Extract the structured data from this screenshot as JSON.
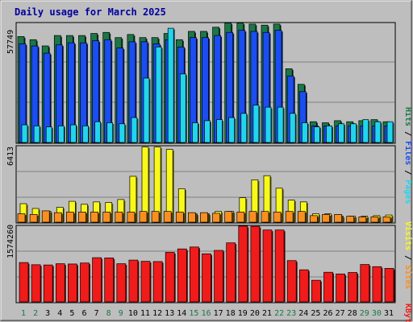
{
  "chart_data": [
    {
      "type": "bar",
      "title": "Daily usage for March 2025",
      "categories": [
        "1",
        "2",
        "3",
        "4",
        "5",
        "6",
        "7",
        "8",
        "9",
        "10",
        "11",
        "12",
        "13",
        "14",
        "15",
        "16",
        "17",
        "18",
        "19",
        "20",
        "21",
        "22",
        "23",
        "24",
        "25",
        "26",
        "27",
        "28",
        "29",
        "30",
        "31"
      ],
      "weekend_days": [
        "1",
        "2",
        "8",
        "9",
        "15",
        "16",
        "22",
        "23",
        "29",
        "30"
      ],
      "ylabel_max": "57749",
      "ylim": [
        0,
        57749
      ],
      "legend": [
        "Pages",
        "Files",
        "Hits"
      ],
      "series": [
        {
          "name": "Hits",
          "color": "#1b7748",
          "values": [
            51000,
            49500,
            46500,
            51500,
            51500,
            51500,
            52500,
            53000,
            50500,
            52000,
            50500,
            50500,
            52500,
            49500,
            53500,
            53500,
            55500,
            57500,
            57500,
            57000,
            56500,
            57000,
            35500,
            28000,
            10000,
            9500,
            10500,
            10000,
            10500,
            11000,
            10000
          ]
        },
        {
          "name": "Files",
          "color": "#1b4df0",
          "values": [
            47500,
            46500,
            43000,
            47000,
            48000,
            48000,
            49000,
            49500,
            45500,
            48500,
            48500,
            47500,
            49500,
            46000,
            50500,
            50500,
            51500,
            53000,
            54000,
            53500,
            53000,
            54000,
            32000,
            24500,
            8000,
            8000,
            8000,
            8000,
            8000,
            8000,
            8000
          ]
        },
        {
          "name": "Pages",
          "color": "#22d4ee",
          "values": [
            8500,
            8000,
            7500,
            8000,
            8500,
            8000,
            10000,
            9500,
            9000,
            12000,
            31000,
            46000,
            55000,
            33000,
            9500,
            10500,
            11000,
            12000,
            14000,
            18000,
            17000,
            17000,
            14000,
            9500,
            7500,
            8000,
            9000,
            9000,
            11000,
            10000,
            10000
          ]
        }
      ]
    },
    {
      "type": "bar",
      "categories": [
        "1",
        "2",
        "3",
        "4",
        "5",
        "6",
        "7",
        "8",
        "9",
        "10",
        "11",
        "12",
        "13",
        "14",
        "15",
        "16",
        "17",
        "18",
        "19",
        "20",
        "21",
        "22",
        "23",
        "24",
        "25",
        "26",
        "27",
        "28",
        "29",
        "30",
        "31"
      ],
      "ylabel_max": "6413",
      "ylim": [
        0,
        6413
      ],
      "legend": [
        "Sites",
        "Visits"
      ],
      "series": [
        {
          "name": "Visits",
          "color": "#f8f81b",
          "values": [
            1550,
            1150,
            900,
            1250,
            1750,
            1500,
            1700,
            1650,
            1900,
            3850,
            6300,
            6300,
            6100,
            2800,
            700,
            700,
            900,
            900,
            2050,
            3550,
            3900,
            2850,
            1850,
            1700,
            700,
            700,
            500,
            500,
            500,
            550,
            600
          ]
        },
        {
          "name": "Sites",
          "color": "#f98f21",
          "values": [
            700,
            650,
            950,
            800,
            850,
            850,
            850,
            850,
            850,
            850,
            900,
            900,
            900,
            850,
            800,
            800,
            750,
            900,
            850,
            900,
            900,
            850,
            900,
            900,
            550,
            650,
            650,
            500,
            450,
            450,
            450
          ]
        }
      ]
    },
    {
      "type": "bar",
      "categories": [
        "1",
        "2",
        "3",
        "4",
        "5",
        "6",
        "7",
        "8",
        "9",
        "10",
        "11",
        "12",
        "13",
        "14",
        "15",
        "16",
        "17",
        "18",
        "19",
        "20",
        "21",
        "22",
        "23",
        "24",
        "25",
        "26",
        "27",
        "28",
        "29",
        "30",
        "31"
      ],
      "ylabel_max": "1574260",
      "ylim": [
        0,
        1574260
      ],
      "legend": [
        "KBytes"
      ],
      "series": [
        {
          "name": "KBytes",
          "color": "#f01b1b",
          "values": [
            810000,
            765000,
            760000,
            785000,
            780000,
            800000,
            910000,
            905000,
            785000,
            860000,
            835000,
            830000,
            1020000,
            1090000,
            1130000,
            990000,
            1060000,
            1215000,
            1560000,
            1555000,
            1480000,
            1480000,
            850000,
            660000,
            445000,
            610000,
            575000,
            605000,
            770000,
            725000,
            690000
          ]
        }
      ]
    }
  ]
}
